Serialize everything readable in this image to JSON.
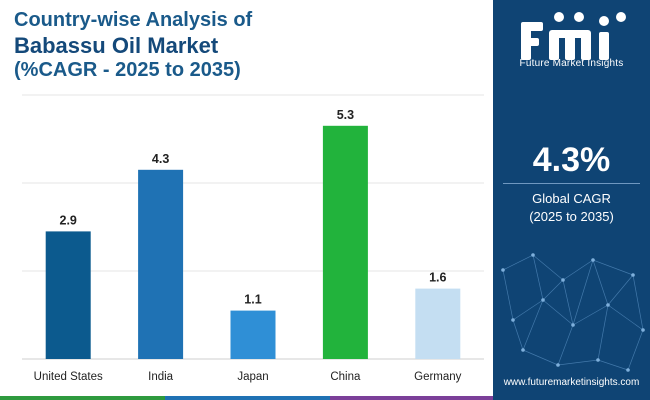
{
  "header": {
    "title_line1": "Country-wise Analysis of",
    "title_line2": "Babassu Oil Market",
    "title_line3": "(%CAGR - 2025 to 2035)"
  },
  "sidebar": {
    "brand": "Future Market Insights",
    "kpi_value": "4.3%",
    "kpi_label_line1": "Global CAGR",
    "kpi_label_line2": "(2025 to 2035)",
    "website": "www.futuremarketinsights.com",
    "colors": {
      "panel": "#0f4474"
    }
  },
  "chart_data": {
    "type": "bar",
    "categories": [
      "United States",
      "India",
      "Japan",
      "China",
      "Germany"
    ],
    "values": [
      2.9,
      4.3,
      1.1,
      5.3,
      1.6
    ],
    "colors": [
      "#0c5a8e",
      "#1f72b4",
      "#2f8fd6",
      "#22b33c",
      "#c4def2"
    ],
    "ylim": [
      0,
      6
    ],
    "grid": true,
    "data_labels": true
  }
}
